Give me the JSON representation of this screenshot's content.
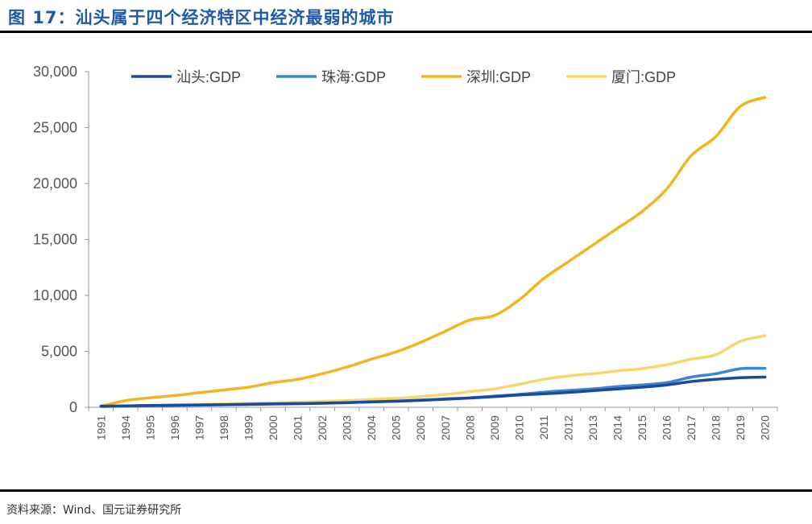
{
  "header": {
    "title": "图 17：汕头属于四个经济特区中经济最弱的城市"
  },
  "footer": {
    "source": "资料来源：Wind、国元证券研究所"
  },
  "chart_data": {
    "type": "line",
    "title": "",
    "xlabel": "",
    "ylabel": "",
    "ylim": [
      0,
      30000
    ],
    "yticks": [
      0,
      5000,
      10000,
      15000,
      20000,
      25000,
      30000
    ],
    "ytick_labels": [
      "0",
      "5,000",
      "10,000",
      "15,000",
      "20,000",
      "25,000",
      "30,000"
    ],
    "x": [
      "1991",
      "1994",
      "1995",
      "1996",
      "1997",
      "1998",
      "1999",
      "2000",
      "2001",
      "2002",
      "2003",
      "2004",
      "2005",
      "2006",
      "2007",
      "2008",
      "2009",
      "2010",
      "2011",
      "2012",
      "2013",
      "2014",
      "2015",
      "2016",
      "2017",
      "2018",
      "2019",
      "2020"
    ],
    "legend_position": "top",
    "grid": false,
    "series": [
      {
        "name": "汕头:GDP",
        "color": "#1a4a9c",
        "values": [
          100,
          130,
          160,
          180,
          210,
          240,
          270,
          300,
          330,
          370,
          420,
          480,
          540,
          620,
          720,
          830,
          950,
          1100,
          1200,
          1330,
          1480,
          1640,
          1800,
          2000,
          2300,
          2500,
          2640,
          2700
        ]
      },
      {
        "name": "珠海:GDP",
        "color": "#3a87d0",
        "values": [
          70,
          100,
          140,
          170,
          190,
          220,
          250,
          290,
          320,
          360,
          420,
          480,
          550,
          650,
          750,
          850,
          1000,
          1150,
          1350,
          1500,
          1650,
          1850,
          2000,
          2200,
          2700,
          3000,
          3450,
          3480
        ]
      },
      {
        "name": "深圳:GDP",
        "color": "#f0b520",
        "values": [
          100,
          600,
          850,
          1050,
          1300,
          1550,
          1800,
          2200,
          2500,
          3000,
          3600,
          4300,
          4950,
          5800,
          6800,
          7800,
          8200,
          9600,
          11500,
          13000,
          14500,
          16000,
          17500,
          19500,
          22500,
          24200,
          26900,
          27700
        ]
      },
      {
        "name": "厦门:GDP",
        "color": "#f9d66b",
        "values": [
          70,
          130,
          180,
          220,
          260,
          300,
          360,
          400,
          450,
          520,
          600,
          700,
          800,
          950,
          1150,
          1400,
          1650,
          2050,
          2500,
          2800,
          3000,
          3250,
          3450,
          3800,
          4300,
          4700,
          5900,
          6400
        ]
      }
    ]
  }
}
